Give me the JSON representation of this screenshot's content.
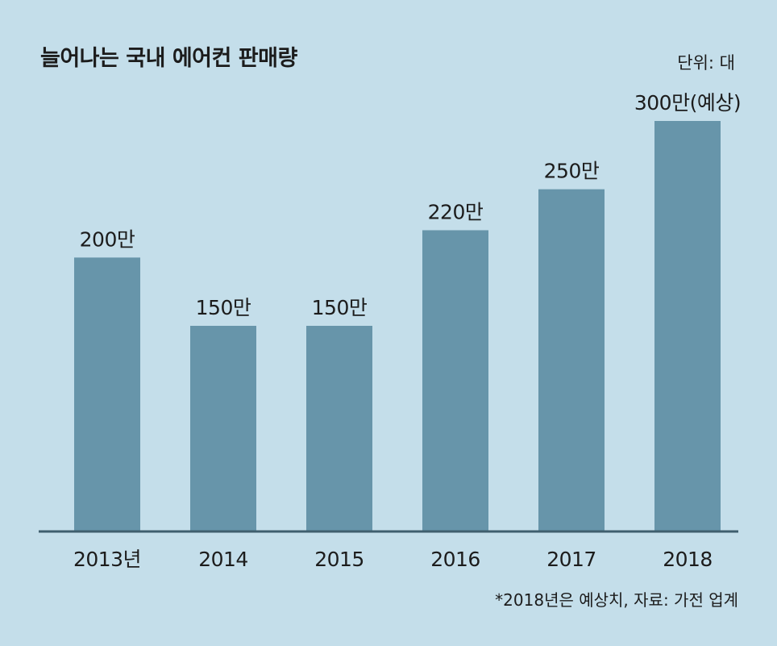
{
  "header": {
    "title": "늘어나는 국내 에어컨 판매량",
    "unit": "단위: 대"
  },
  "footer": {
    "note": "*2018년은 예상치, 자료: 가전 업계"
  },
  "colors": {
    "background": "#c4deea",
    "bar": "#6795aa",
    "axis": "#3f5f6e",
    "text": "#1c1c1c"
  },
  "chart_data": {
    "type": "bar",
    "title": "늘어나는 국내 에어컨 판매량",
    "unit": "단위: 대",
    "categories": [
      "2013년",
      "2014",
      "2015",
      "2016",
      "2017",
      "2018"
    ],
    "values": [
      2000000,
      1500000,
      1500000,
      2200000,
      2500000,
      3000000
    ],
    "data_labels": [
      "200만",
      "150만",
      "150만",
      "220만",
      "250만",
      "300만(예상)"
    ],
    "ylim": [
      0,
      3000000
    ],
    "grid": false,
    "legend": "none",
    "note": "*2018년은 예상치, 자료: 가전 업계"
  }
}
